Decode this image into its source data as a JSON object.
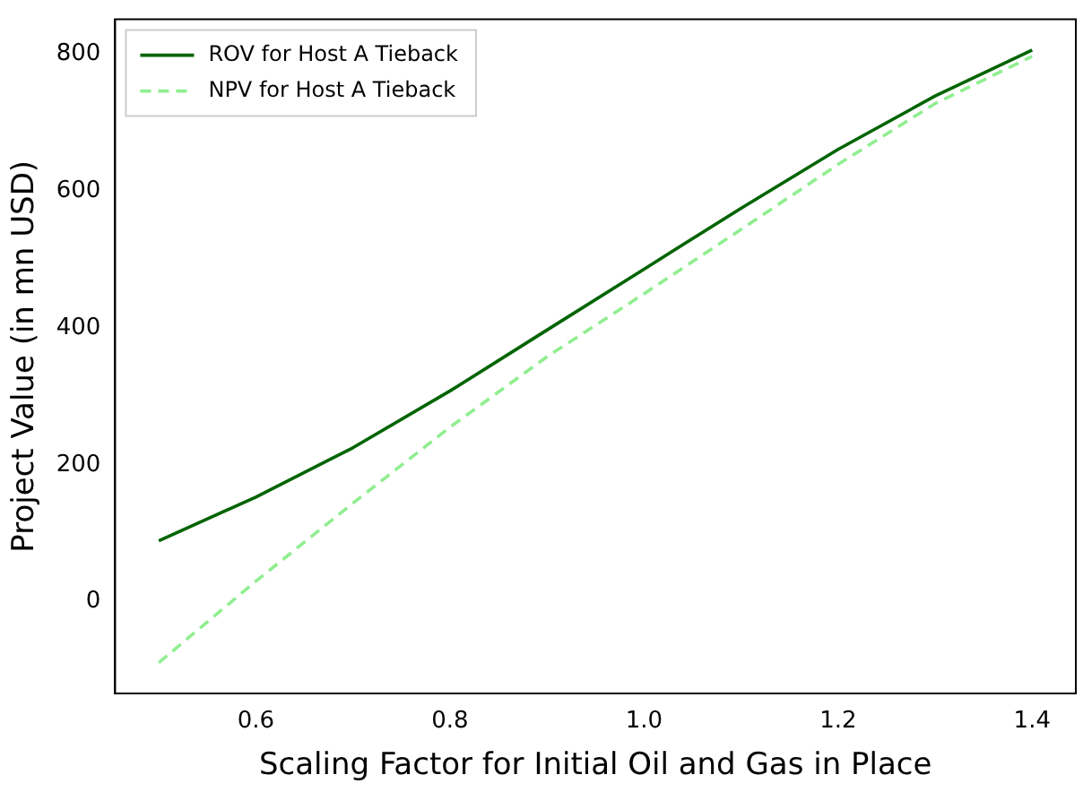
{
  "chart_data": {
    "type": "line",
    "xlabel": "Scaling Factor for Initial Oil and Gas in Place",
    "ylabel": "Project Value (in mn USD)",
    "x": [
      0.5,
      0.6,
      0.7,
      0.8,
      0.9,
      1.0,
      1.1,
      1.2,
      1.3,
      1.4
    ],
    "series": [
      {
        "name": "ROV for Host A Tieback",
        "color": "#006400",
        "line_style": "solid",
        "values": [
          89,
          153,
          225,
          308,
          397,
          486,
          575,
          661,
          739,
          806
        ]
      },
      {
        "name": "NPV for Host A Tieback",
        "color": "#90ee90",
        "line_style": "dashed",
        "values": [
          -89,
          30,
          144,
          255,
          358,
          450,
          544,
          639,
          728,
          797
        ]
      }
    ],
    "xlim": [
      0.455,
      1.445
    ],
    "xticks": [
      {
        "value": 0.6,
        "label": "0.6"
      },
      {
        "value": 0.8,
        "label": "0.8"
      },
      {
        "value": 1,
        "label": "1.0"
      },
      {
        "value": 1.2,
        "label": "1.2"
      },
      {
        "value": 1.4,
        "label": "1.4"
      }
    ],
    "ylim": [
      -134,
      851
    ],
    "yticks": [
      0,
      200,
      400,
      600,
      800
    ],
    "grid": false,
    "legend": "top left",
    "marker": "none"
  }
}
